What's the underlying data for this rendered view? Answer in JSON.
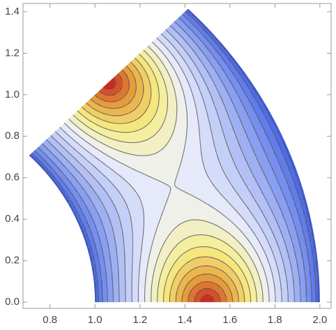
{
  "chart_data": {
    "type": "contour",
    "xlim": [
      0.68,
      2.05
    ],
    "ylim": [
      -0.03,
      1.44
    ],
    "xticks": [
      {
        "value": 0.8,
        "label": "0.8"
      },
      {
        "value": 1.0,
        "label": "1.0"
      },
      {
        "value": 1.2,
        "label": "1.2"
      },
      {
        "value": 1.4,
        "label": "1.4"
      },
      {
        "value": 1.6,
        "label": "1.6"
      },
      {
        "value": 1.8,
        "label": "1.8"
      },
      {
        "value": 2.0,
        "label": "2.0"
      }
    ],
    "yticks": [
      {
        "value": 0.0,
        "label": "0.0"
      },
      {
        "value": 0.2,
        "label": "0.2"
      },
      {
        "value": 0.4,
        "label": "0.4"
      },
      {
        "value": 0.6,
        "label": "0.6"
      },
      {
        "value": 0.8,
        "label": "0.8"
      },
      {
        "value": 1.0,
        "label": "1.0"
      },
      {
        "value": 1.2,
        "label": "1.2"
      },
      {
        "value": 1.4,
        "label": "1.4"
      }
    ],
    "region": {
      "r": [
        1,
        2
      ],
      "angle": [
        0,
        45
      ]
    },
    "peaks": [
      {
        "x": 1.5,
        "y": 0.0
      },
      {
        "x": 1.06,
        "y": 1.06
      }
    ],
    "levels": 20,
    "colors": [
      "#3a5be6",
      "#7891ef",
      "#b9c6f6",
      "#eef0fb",
      "#f6ee86",
      "#e8a23c",
      "#cc2a22"
    ]
  }
}
